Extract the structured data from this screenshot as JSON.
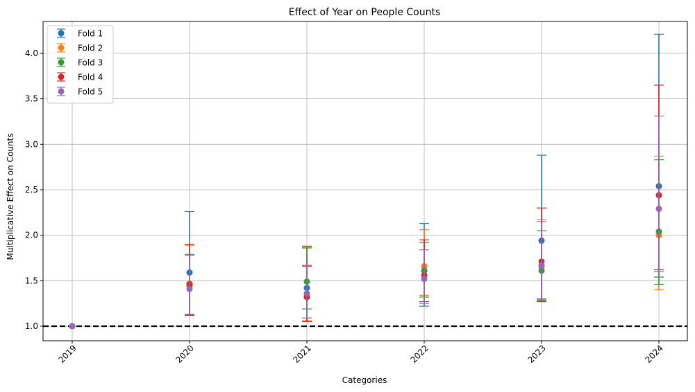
{
  "chart_data": {
    "type": "scatter",
    "title": "Effect of Year on People Counts",
    "xlabel": "Categories",
    "ylabel": "Multiplicative Effect on Counts",
    "categories": [
      "2019",
      "2020",
      "2021",
      "2022",
      "2023",
      "2024"
    ],
    "ylim": [
      0.84,
      4.35
    ],
    "yticks": [
      1.0,
      1.5,
      2.0,
      2.5,
      3.0,
      3.5,
      4.0
    ],
    "ytick_labels": [
      "1.0",
      "1.5",
      "2.0",
      "2.5",
      "3.0",
      "3.5",
      "4.0"
    ],
    "grid": true,
    "legend_position": "top-left",
    "reference_line": {
      "y": 1.0,
      "color": "#000000",
      "style": "dashed"
    },
    "series": [
      {
        "name": "Fold 1",
        "color": "#1f77b4",
        "values": [
          1.0,
          1.59,
          1.42,
          1.61,
          1.94,
          2.54
        ],
        "lower": [
          1.0,
          1.12,
          1.06,
          1.22,
          1.3,
          1.54
        ],
        "upper": [
          1.0,
          2.26,
          1.88,
          2.13,
          2.88,
          4.21
        ]
      },
      {
        "name": "Fold 2",
        "color": "#ff7f0e",
        "values": [
          1.0,
          1.47,
          1.34,
          1.66,
          1.65,
          2.0
        ],
        "lower": [
          1.0,
          1.13,
          1.06,
          1.34,
          1.27,
          1.4
        ],
        "upper": [
          1.0,
          1.89,
          1.87,
          2.06,
          2.17,
          2.87
        ]
      },
      {
        "name": "Fold 3",
        "color": "#2ca02c",
        "values": [
          1.0,
          1.44,
          1.49,
          1.61,
          1.61,
          2.04
        ],
        "lower": [
          1.0,
          1.13,
          1.19,
          1.32,
          1.28,
          1.46
        ],
        "upper": [
          1.0,
          1.79,
          1.86,
          1.92,
          2.05,
          2.83
        ]
      },
      {
        "name": "Fold 4",
        "color": "#d62728",
        "values": [
          1.0,
          1.46,
          1.32,
          1.56,
          1.71,
          2.44
        ],
        "lower": [
          1.0,
          1.12,
          1.05,
          1.27,
          1.27,
          1.62
        ],
        "upper": [
          1.0,
          1.9,
          1.66,
          1.95,
          2.3,
          3.65
        ]
      },
      {
        "name": "Fold 5",
        "color": "#9467bd",
        "values": [
          1.0,
          1.41,
          1.36,
          1.52,
          1.67,
          2.29
        ],
        "lower": [
          1.0,
          1.13,
          1.09,
          1.25,
          1.29,
          1.6
        ],
        "upper": [
          1.0,
          1.78,
          1.67,
          1.84,
          2.15,
          3.31
        ]
      }
    ]
  }
}
